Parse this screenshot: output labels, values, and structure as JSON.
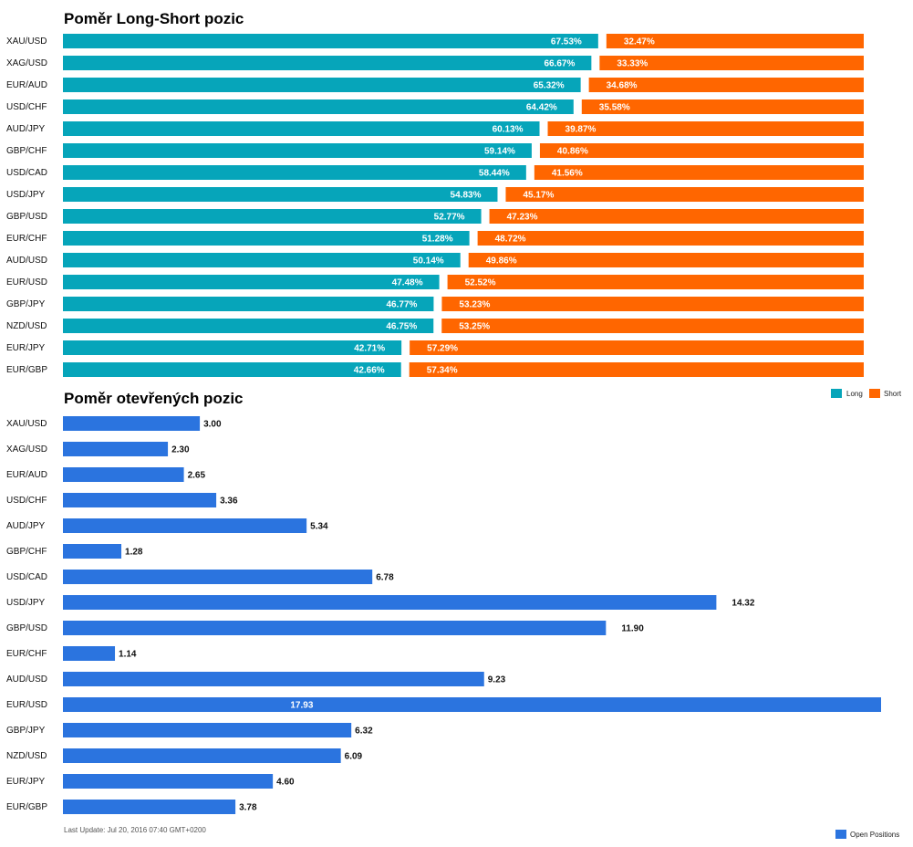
{
  "colors": {
    "long": "#06a5ba",
    "short": "#ff6600",
    "open": "#2b74df"
  },
  "chart_data": [
    {
      "type": "bar",
      "orientation": "horizontal",
      "stacked": true,
      "title": "Poměr Long-Short pozic",
      "categories": [
        "XAU/USD",
        "XAG/USD",
        "EUR/AUD",
        "USD/CHF",
        "AUD/JPY",
        "GBP/CHF",
        "USD/CAD",
        "USD/JPY",
        "GBP/USD",
        "EUR/CHF",
        "AUD/USD",
        "EUR/USD",
        "GBP/JPY",
        "NZD/USD",
        "EUR/JPY",
        "EUR/GBP"
      ],
      "series": [
        {
          "name": "Long",
          "values": [
            67.53,
            66.67,
            65.32,
            64.42,
            60.13,
            59.14,
            58.44,
            54.83,
            52.77,
            51.28,
            50.14,
            47.48,
            46.77,
            46.75,
            42.71,
            42.66
          ],
          "labels": [
            "67.53%",
            "66.67%",
            "65.32%",
            "64.42%",
            "60.13%",
            "59.14%",
            "58.44%",
            "54.83%",
            "52.77%",
            "51.28%",
            "50.14%",
            "47.48%",
            "46.77%",
            "46.75%",
            "42.71%",
            "42.66%"
          ]
        },
        {
          "name": "Short",
          "values": [
            32.47,
            33.33,
            34.68,
            35.58,
            39.87,
            40.86,
            41.56,
            45.17,
            47.23,
            48.72,
            49.86,
            52.52,
            53.23,
            53.25,
            57.29,
            57.34
          ],
          "labels": [
            "32.47%",
            "33.33%",
            "34.68%",
            "35.58%",
            "39.87%",
            "40.86%",
            "41.56%",
            "45.17%",
            "47.23%",
            "48.72%",
            "49.86%",
            "52.52%",
            "53.23%",
            "53.25%",
            "57.29%",
            "57.34%"
          ]
        }
      ],
      "xlim": [
        0,
        100
      ],
      "legend": "right"
    },
    {
      "type": "bar",
      "orientation": "horizontal",
      "title": "Poměr otevřených pozic",
      "categories": [
        "XAU/USD",
        "XAG/USD",
        "EUR/AUD",
        "USD/CHF",
        "AUD/JPY",
        "GBP/CHF",
        "USD/CAD",
        "USD/JPY",
        "GBP/USD",
        "EUR/CHF",
        "AUD/USD",
        "EUR/USD",
        "GBP/JPY",
        "NZD/USD",
        "EUR/JPY",
        "EUR/GBP"
      ],
      "series": [
        {
          "name": "Open Positions",
          "values": [
            3.0,
            2.3,
            2.65,
            3.36,
            5.34,
            1.28,
            6.78,
            14.32,
            11.9,
            1.14,
            9.23,
            17.93,
            6.32,
            6.09,
            4.6,
            3.78
          ],
          "labels": [
            "3.00",
            "2.30",
            "2.65",
            "3.36",
            "5.34",
            "1.28",
            "6.78",
            "14.32",
            "11.90",
            "1.14",
            "9.23",
            "17.93",
            "6.32",
            "6.09",
            "4.60",
            "3.78"
          ]
        }
      ],
      "xlim": [
        0,
        17.93
      ],
      "legend": "bottom-right"
    }
  ],
  "footer": "Last Update: Jul 20, 2016 07:40 GMT+0200"
}
